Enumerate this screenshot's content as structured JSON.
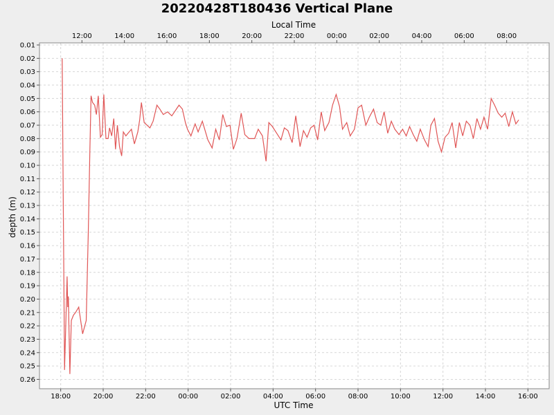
{
  "chart_data": {
    "type": "line",
    "title": "20220428T180436 Vertical Plane",
    "xlabel": "UTC Time",
    "x2label": "Local Time",
    "ylabel": "depth (m)",
    "x_unit": "hours since 18:00 UTC on the first day",
    "xlim": [
      -1,
      23
    ],
    "ylim": [
      0.01,
      0.267
    ],
    "y_inverted": true,
    "grid": true,
    "legend": "none",
    "line_color": "#e05555",
    "bottom_ticks": [
      {
        "x": 0,
        "label": "18:00"
      },
      {
        "x": 2,
        "label": "20:00"
      },
      {
        "x": 4,
        "label": "22:00"
      },
      {
        "x": 6,
        "label": "00:00"
      },
      {
        "x": 8,
        "label": "02:00"
      },
      {
        "x": 10,
        "label": "04:00"
      },
      {
        "x": 12,
        "label": "06:00"
      },
      {
        "x": 14,
        "label": "08:00"
      },
      {
        "x": 16,
        "label": "10:00"
      },
      {
        "x": 18,
        "label": "12:00"
      },
      {
        "x": 20,
        "label": "14:00"
      },
      {
        "x": 22,
        "label": "16:00"
      }
    ],
    "top_ticks": [
      {
        "x": 1,
        "label": "12:00"
      },
      {
        "x": 3,
        "label": "14:00"
      },
      {
        "x": 5,
        "label": "16:00"
      },
      {
        "x": 7,
        "label": "18:00"
      },
      {
        "x": 9,
        "label": "20:00"
      },
      {
        "x": 11,
        "label": "22:00"
      },
      {
        "x": 13,
        "label": "00:00"
      },
      {
        "x": 15,
        "label": "02:00"
      },
      {
        "x": 17,
        "label": "04:00"
      },
      {
        "x": 19,
        "label": "06:00"
      },
      {
        "x": 21,
        "label": "08:00"
      }
    ],
    "y_ticks": [
      {
        "y": 0.01,
        "label": "0.01"
      },
      {
        "y": 0.02,
        "label": "0.02"
      },
      {
        "y": 0.03,
        "label": "0.03"
      },
      {
        "y": 0.04,
        "label": "0.04"
      },
      {
        "y": 0.05,
        "label": "0.05"
      },
      {
        "y": 0.06,
        "label": "0.06"
      },
      {
        "y": 0.07,
        "label": "0.07"
      },
      {
        "y": 0.08,
        "label": "0.08"
      },
      {
        "y": 0.09,
        "label": "0.09"
      },
      {
        "y": 0.1,
        "label": "0.10"
      },
      {
        "y": 0.11,
        "label": "0.11"
      },
      {
        "y": 0.12,
        "label": "0.12"
      },
      {
        "y": 0.13,
        "label": "0.13"
      },
      {
        "y": 0.14,
        "label": "0.14"
      },
      {
        "y": 0.15,
        "label": "0.15"
      },
      {
        "y": 0.16,
        "label": "0.16"
      },
      {
        "y": 0.17,
        "label": "0.17"
      },
      {
        "y": 0.18,
        "label": "0.18"
      },
      {
        "y": 0.19,
        "label": "0.19"
      },
      {
        "y": 0.2,
        "label": "0.20"
      },
      {
        "y": 0.21,
        "label": "0.21"
      },
      {
        "y": 0.22,
        "label": "0.22"
      },
      {
        "y": 0.23,
        "label": "0.23"
      },
      {
        "y": 0.24,
        "label": "0.24"
      },
      {
        "y": 0.25,
        "label": "0.25"
      },
      {
        "y": 0.26,
        "label": "0.26"
      }
    ],
    "series": [
      {
        "points": [
          [
            0.07,
            0.02
          ],
          [
            0.18,
            0.253
          ],
          [
            0.3,
            0.183
          ],
          [
            0.33,
            0.206
          ],
          [
            0.36,
            0.198
          ],
          [
            0.43,
            0.256
          ],
          [
            0.5,
            0.216
          ],
          [
            0.6,
            0.212
          ],
          [
            0.7,
            0.21
          ],
          [
            0.85,
            0.206
          ],
          [
            1.03,
            0.226
          ],
          [
            1.2,
            0.216
          ],
          [
            1.3,
            0.15
          ],
          [
            1.37,
            0.091
          ],
          [
            1.43,
            0.048
          ],
          [
            1.5,
            0.053
          ],
          [
            1.6,
            0.055
          ],
          [
            1.68,
            0.062
          ],
          [
            1.77,
            0.048
          ],
          [
            1.87,
            0.079
          ],
          [
            1.95,
            0.077
          ],
          [
            2.03,
            0.047
          ],
          [
            2.13,
            0.08
          ],
          [
            2.23,
            0.08
          ],
          [
            2.3,
            0.072
          ],
          [
            2.4,
            0.078
          ],
          [
            2.5,
            0.065
          ],
          [
            2.58,
            0.088
          ],
          [
            2.67,
            0.07
          ],
          [
            2.77,
            0.086
          ],
          [
            2.87,
            0.093
          ],
          [
            2.95,
            0.075
          ],
          [
            3.07,
            0.078
          ],
          [
            3.17,
            0.076
          ],
          [
            3.33,
            0.073
          ],
          [
            3.47,
            0.084
          ],
          [
            3.63,
            0.075
          ],
          [
            3.72,
            0.066
          ],
          [
            3.8,
            0.053
          ],
          [
            3.93,
            0.068
          ],
          [
            4.2,
            0.072
          ],
          [
            4.35,
            0.067
          ],
          [
            4.53,
            0.055
          ],
          [
            4.67,
            0.058
          ],
          [
            4.83,
            0.062
          ],
          [
            5.03,
            0.06
          ],
          [
            5.23,
            0.063
          ],
          [
            5.4,
            0.059
          ],
          [
            5.57,
            0.055
          ],
          [
            5.73,
            0.058
          ],
          [
            5.87,
            0.068
          ],
          [
            5.97,
            0.073
          ],
          [
            6.13,
            0.078
          ],
          [
            6.33,
            0.069
          ],
          [
            6.47,
            0.075
          ],
          [
            6.67,
            0.067
          ],
          [
            6.8,
            0.074
          ],
          [
            6.93,
            0.081
          ],
          [
            7.13,
            0.087
          ],
          [
            7.3,
            0.073
          ],
          [
            7.47,
            0.081
          ],
          [
            7.63,
            0.062
          ],
          [
            7.8,
            0.071
          ],
          [
            7.97,
            0.07
          ],
          [
            8.13,
            0.088
          ],
          [
            8.3,
            0.08
          ],
          [
            8.5,
            0.061
          ],
          [
            8.67,
            0.077
          ],
          [
            8.87,
            0.08
          ],
          [
            9.13,
            0.08
          ],
          [
            9.3,
            0.073
          ],
          [
            9.5,
            0.078
          ],
          [
            9.67,
            0.097
          ],
          [
            9.8,
            0.068
          ],
          [
            9.97,
            0.071
          ],
          [
            10.17,
            0.076
          ],
          [
            10.37,
            0.081
          ],
          [
            10.53,
            0.072
          ],
          [
            10.7,
            0.074
          ],
          [
            10.9,
            0.083
          ],
          [
            11.07,
            0.063
          ],
          [
            11.27,
            0.086
          ],
          [
            11.43,
            0.074
          ],
          [
            11.6,
            0.079
          ],
          [
            11.77,
            0.072
          ],
          [
            11.93,
            0.07
          ],
          [
            12.1,
            0.081
          ],
          [
            12.27,
            0.06
          ],
          [
            12.43,
            0.074
          ],
          [
            12.63,
            0.068
          ],
          [
            12.8,
            0.055
          ],
          [
            12.97,
            0.047
          ],
          [
            13.13,
            0.056
          ],
          [
            13.27,
            0.073
          ],
          [
            13.47,
            0.068
          ],
          [
            13.63,
            0.078
          ],
          [
            13.83,
            0.073
          ],
          [
            14.0,
            0.057
          ],
          [
            14.17,
            0.055
          ],
          [
            14.37,
            0.07
          ],
          [
            14.53,
            0.064
          ],
          [
            14.73,
            0.058
          ],
          [
            14.9,
            0.068
          ],
          [
            15.07,
            0.07
          ],
          [
            15.23,
            0.06
          ],
          [
            15.4,
            0.076
          ],
          [
            15.57,
            0.067
          ],
          [
            15.73,
            0.073
          ],
          [
            15.93,
            0.077
          ],
          [
            16.1,
            0.073
          ],
          [
            16.27,
            0.078
          ],
          [
            16.43,
            0.071
          ],
          [
            16.6,
            0.077
          ],
          [
            16.77,
            0.082
          ],
          [
            16.93,
            0.073
          ],
          [
            17.13,
            0.081
          ],
          [
            17.3,
            0.086
          ],
          [
            17.43,
            0.07
          ],
          [
            17.6,
            0.065
          ],
          [
            17.77,
            0.082
          ],
          [
            17.93,
            0.09
          ],
          [
            18.1,
            0.079
          ],
          [
            18.27,
            0.076
          ],
          [
            18.43,
            0.068
          ],
          [
            18.6,
            0.087
          ],
          [
            18.77,
            0.068
          ],
          [
            18.93,
            0.078
          ],
          [
            19.1,
            0.067
          ],
          [
            19.27,
            0.07
          ],
          [
            19.43,
            0.08
          ],
          [
            19.6,
            0.065
          ],
          [
            19.77,
            0.073
          ],
          [
            19.93,
            0.064
          ],
          [
            20.1,
            0.073
          ],
          [
            20.27,
            0.05
          ],
          [
            20.43,
            0.055
          ],
          [
            20.6,
            0.061
          ],
          [
            20.77,
            0.064
          ],
          [
            20.93,
            0.061
          ],
          [
            21.1,
            0.071
          ],
          [
            21.27,
            0.06
          ],
          [
            21.43,
            0.069
          ],
          [
            21.57,
            0.066
          ]
        ]
      }
    ]
  }
}
